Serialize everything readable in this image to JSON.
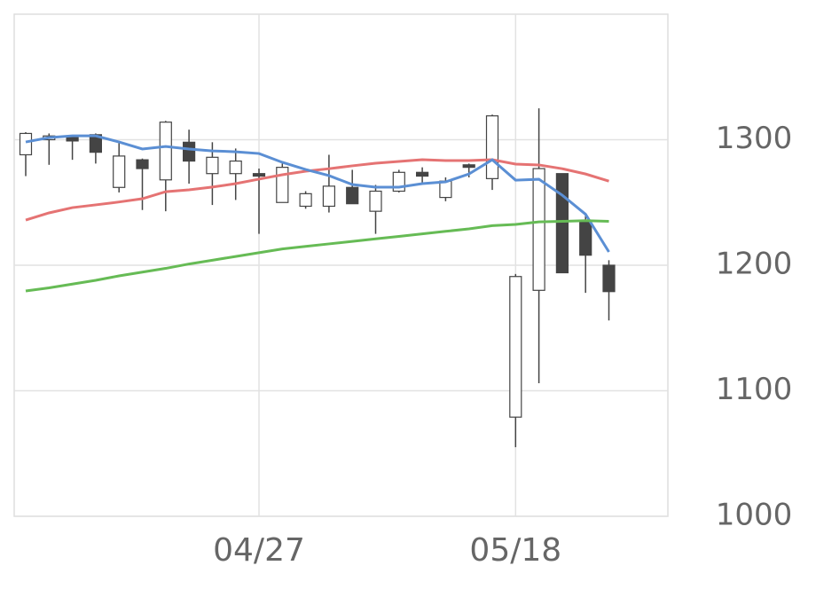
{
  "chart_data": {
    "type": "candlestick",
    "categories": [
      null,
      null,
      null,
      null,
      null,
      null,
      null,
      null,
      null,
      null,
      "04/27",
      null,
      null,
      null,
      null,
      null,
      null,
      null,
      null,
      null,
      null,
      "05/18",
      null,
      null,
      null,
      null
    ],
    "open": [
      1288,
      1300,
      1302,
      1304,
      1262,
      1284,
      1268,
      1298,
      1273,
      1273,
      1273,
      1250,
      1247,
      1247,
      1262,
      1243,
      1259,
      1274,
      1254,
      1280,
      1269,
      1079,
      1180,
      1273,
      1235,
      1200
    ],
    "high": [
      1306,
      1305,
      1303,
      1305,
      1299,
      1285,
      1315,
      1308,
      1298,
      1293,
      1277,
      1281,
      1259,
      1288,
      1276,
      1264,
      1276,
      1278,
      1270,
      1281,
      1320,
      1193,
      1325,
      1273,
      1240,
      1204
    ],
    "low": [
      1271,
      1280,
      1284,
      1281,
      1258,
      1244,
      1243,
      1265,
      1248,
      1252,
      1225,
      1250,
      1245,
      1242,
      1249,
      1225,
      1258,
      1265,
      1251,
      1270,
      1260,
      1055,
      1106,
      1194,
      1178,
      1156
    ],
    "close": [
      1305,
      1303,
      1299,
      1290,
      1287,
      1277,
      1314,
      1283,
      1286,
      1283,
      1271,
      1278,
      1257,
      1263,
      1249,
      1259,
      1274,
      1271,
      1267,
      1278,
      1319,
      1191,
      1277,
      1194,
      1208,
      1179
    ],
    "up_color": "#ffffff",
    "down_color": "#444444",
    "wick_color": "#444444",
    "lines": [
      {
        "color": "#e57373",
        "values": [
          1236.0,
          1241.7,
          1245.9,
          1248.1,
          1250.4,
          1253.0,
          1258.6,
          1260.1,
          1262.3,
          1265.0,
          1268.6,
          1272.1,
          1274.9,
          1276.9,
          1279.2,
          1281.3,
          1282.7,
          1284.1,
          1283.4,
          1283.4,
          1284.1,
          1280.6,
          1279.9,
          1276.9,
          1272.7,
          1267.0
        ]
      },
      {
        "color": "#5b8fd4",
        "values": [
          1298.2,
          1301.7,
          1303.1,
          1303.1,
          1298.2,
          1292.6,
          1294.6,
          1292.6,
          1291.1,
          1290.4,
          1289.0,
          1282.0,
          1276.3,
          1271.4,
          1264.3,
          1262.2,
          1262.2,
          1265.0,
          1266.4,
          1272.7,
          1284.0,
          1267.8,
          1268.5,
          1255.8,
          1240.6,
          1210.6
        ]
      },
      {
        "color": "#66bb55",
        "values": [
          1179.5,
          1182,
          1185,
          1188,
          1191.5,
          1194.5,
          1197.5,
          1201,
          1204,
          1207,
          1210,
          1213,
          1215,
          1217,
          1219,
          1221,
          1223,
          1225,
          1227,
          1229,
          1231.5,
          1232.5,
          1234.5,
          1235,
          1235.5,
          1235
        ]
      }
    ],
    "ylim": [
      1000,
      1400
    ],
    "yticks": [
      1000,
      1100,
      1200,
      1300
    ],
    "grid": true
  }
}
